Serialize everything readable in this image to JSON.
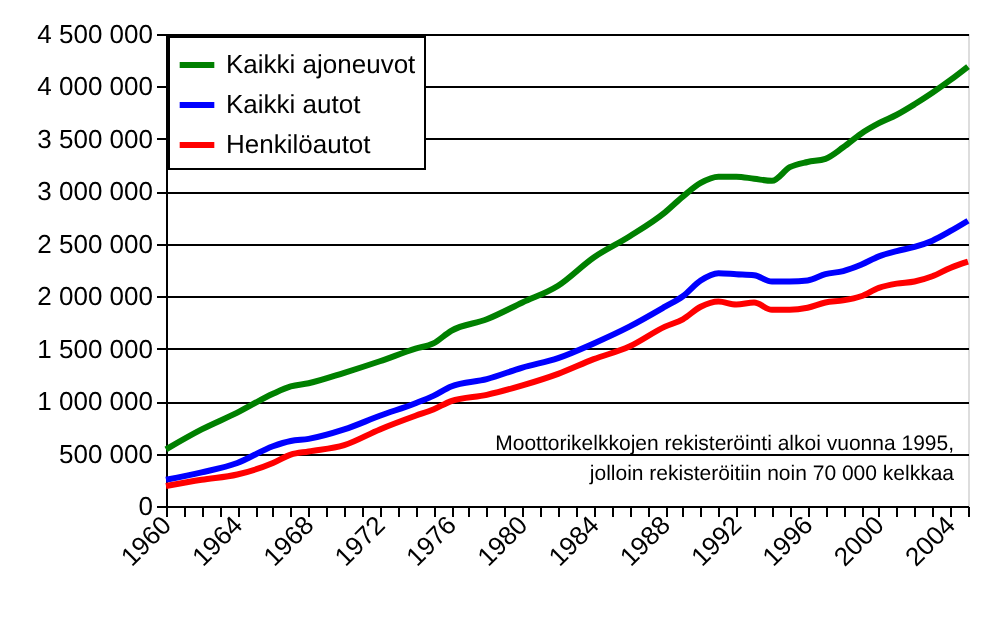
{
  "chart_data": {
    "type": "line",
    "x": [
      1960,
      1962,
      1964,
      1966,
      1967,
      1968,
      1970,
      1972,
      1974,
      1975,
      1976,
      1978,
      1980,
      1982,
      1984,
      1986,
      1988,
      1989,
      1990,
      1991,
      1992,
      1993,
      1994,
      1995,
      1996,
      1997,
      1998,
      1999,
      2000,
      2001,
      2002,
      2003,
      2004,
      2005
    ],
    "series": [
      {
        "name": "Kaikki ajoneuvot",
        "color": "#008000",
        "values": [
          540000,
          730000,
          890000,
          1070000,
          1140000,
          1170000,
          1270000,
          1380000,
          1500000,
          1550000,
          1670000,
          1780000,
          1940000,
          2100000,
          2370000,
          2570000,
          2800000,
          2950000,
          3080000,
          3140000,
          3140000,
          3120000,
          3100000,
          3230000,
          3280000,
          3310000,
          3420000,
          3550000,
          3650000,
          3730000,
          3830000,
          3940000,
          4060000,
          4190000
        ]
      },
      {
        "name": "Kaikki autot",
        "color": "#0000ff",
        "values": [
          250000,
          320000,
          410000,
          570000,
          620000,
          640000,
          730000,
          860000,
          980000,
          1050000,
          1140000,
          1210000,
          1320000,
          1410000,
          1550000,
          1710000,
          1900000,
          2000000,
          2150000,
          2220000,
          2210000,
          2200000,
          2140000,
          2140000,
          2150000,
          2210000,
          2240000,
          2300000,
          2380000,
          2430000,
          2470000,
          2530000,
          2620000,
          2720000
        ]
      },
      {
        "name": "Henkilöautot",
        "color": "#ff0000",
        "values": [
          190000,
          250000,
          300000,
          410000,
          490000,
          520000,
          580000,
          730000,
          860000,
          920000,
          1000000,
          1060000,
          1150000,
          1260000,
          1400000,
          1520000,
          1710000,
          1780000,
          1900000,
          1950000,
          1920000,
          1940000,
          1870000,
          1870000,
          1890000,
          1940000,
          1960000,
          2000000,
          2080000,
          2120000,
          2140000,
          2190000,
          2270000,
          2330000
        ]
      }
    ],
    "xlim": [
      1960,
      2005
    ],
    "xticks": [
      1960,
      {
        "value": 1961,
        "label": null
      },
      {
        "value": 1962,
        "label": null
      },
      {
        "value": 1963,
        "label": null
      },
      1964,
      {
        "value": 1965,
        "label": null
      },
      {
        "value": 1966,
        "label": null
      },
      {
        "value": 1967,
        "label": null
      },
      1968,
      {
        "value": 1969,
        "label": null
      },
      {
        "value": 1970,
        "label": null
      },
      {
        "value": 1971,
        "label": null
      },
      1972,
      {
        "value": 1973,
        "label": null
      },
      {
        "value": 1974,
        "label": null
      },
      {
        "value": 1975,
        "label": null
      },
      1976,
      {
        "value": 1977,
        "label": null
      },
      {
        "value": 1978,
        "label": null
      },
      {
        "value": 1979,
        "label": null
      },
      1980,
      {
        "value": 1981,
        "label": null
      },
      {
        "value": 1982,
        "label": null
      },
      {
        "value": 1983,
        "label": null
      },
      1984,
      {
        "value": 1985,
        "label": null
      },
      {
        "value": 1986,
        "label": null
      },
      {
        "value": 1987,
        "label": null
      },
      1988,
      {
        "value": 1989,
        "label": null
      },
      {
        "value": 1990,
        "label": null
      },
      {
        "value": 1991,
        "label": null
      },
      1992,
      {
        "value": 1993,
        "label": null
      },
      {
        "value": 1994,
        "label": null
      },
      {
        "value": 1995,
        "label": null
      },
      1996,
      {
        "value": 1997,
        "label": null
      },
      {
        "value": 1998,
        "label": null
      },
      {
        "value": 1999,
        "label": null
      },
      2000,
      {
        "value": 2001,
        "label": null
      },
      {
        "value": 2002,
        "label": null
      },
      {
        "value": 2003,
        "label": null
      },
      2004,
      {
        "value": 2005,
        "label": null
      }
    ],
    "ylim": [
      0,
      4500000
    ],
    "yticks": [
      0,
      {
        "value": 500000,
        "label": "500 000"
      },
      {
        "value": 1000000,
        "label": "1 000 000"
      },
      {
        "value": 1500000,
        "label": "1 500 000"
      },
      {
        "value": 2000000,
        "label": "2 000 000"
      },
      {
        "value": 2500000,
        "label": "2 500 000"
      },
      {
        "value": 3000000,
        "label": "3 000 000"
      },
      {
        "value": 3500000,
        "label": "3 500 000"
      },
      {
        "value": 4000000,
        "label": "4 000 000"
      },
      {
        "value": 4500000,
        "label": "4 500 000"
      }
    ],
    "grid": "y",
    "legend": "top left",
    "marker": "none",
    "line_style": "solid",
    "annotations": [
      "Moottorikelkkojen rekisteröinti alkoi vuonna 1995, jolloin rekisteröitiin noin 70 000 kelkkaa"
    ]
  }
}
